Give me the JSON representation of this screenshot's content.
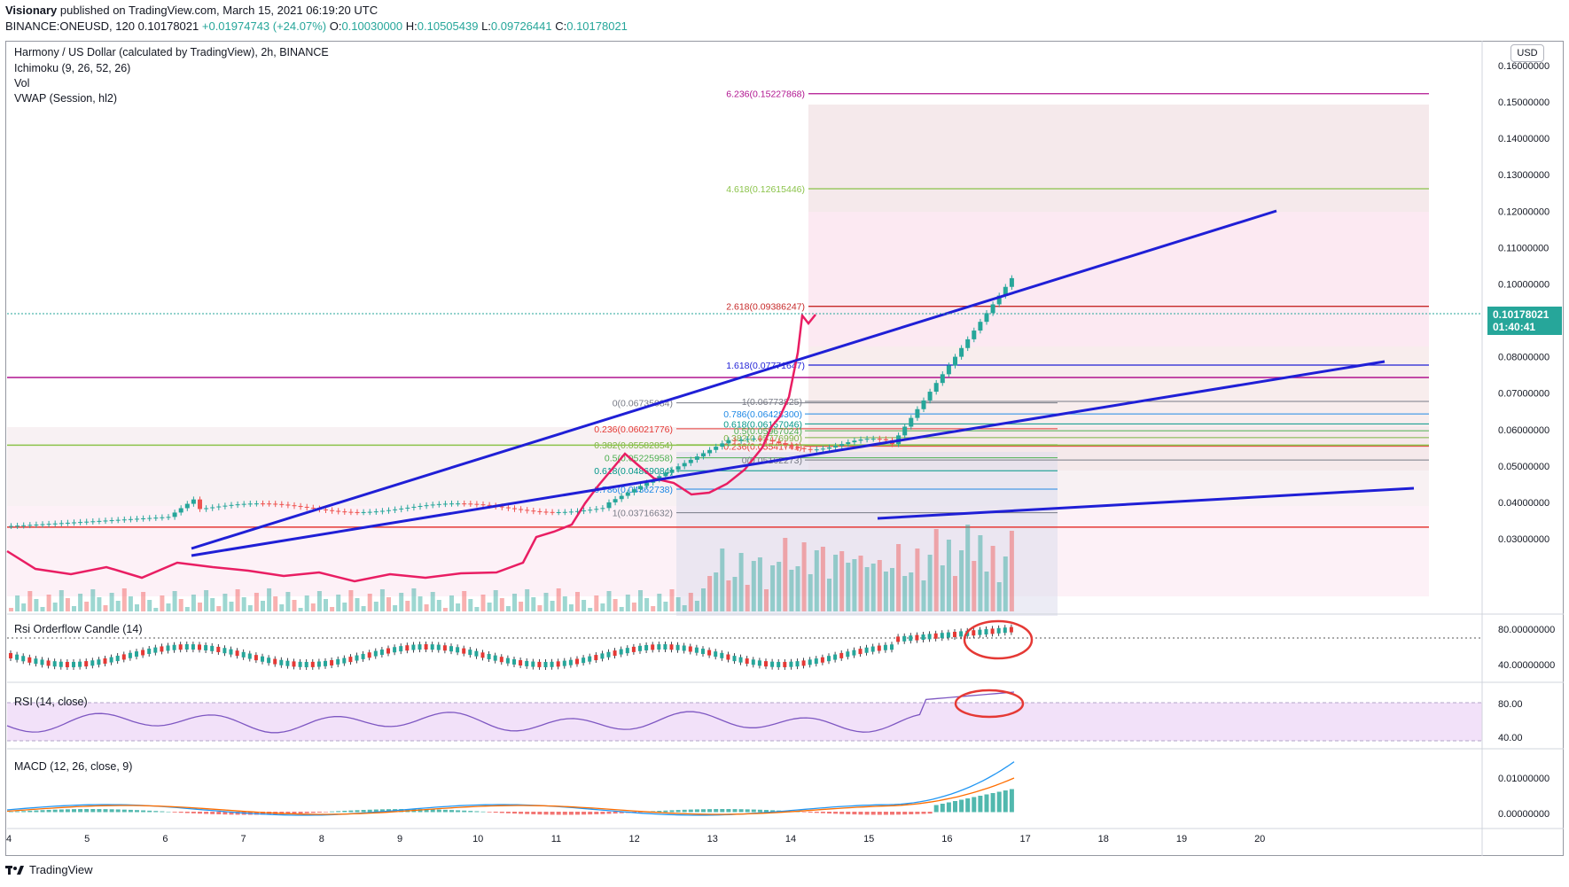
{
  "header": {
    "author": "Visionary",
    "published": "published on TradingView.com, March 15, 2021 06:19:20 UTC",
    "symbol": "BINANCE:ONEUSD, 120",
    "last": "0.10178021",
    "change": "+0.01974743 (+24.07%)",
    "o": "0.10030000",
    "h": "0.10505439",
    "l": "0.09726441",
    "c": "0.10178021"
  },
  "legend": {
    "title": "Harmony / US Dollar (calculated by TradingView), 2h, BINANCE",
    "ichimoku": "Ichimoku (9, 26, 52, 26)",
    "vol": "Vol",
    "vwap": "VWAP (Session, hl2)",
    "rsi_orderflow": "Rsi Orderflow Candle (14)",
    "rsi": "RSI (14, close)",
    "macd": "MACD (12, 26, close, 9)"
  },
  "currency_button": "USD",
  "price_tag": {
    "price": "0.10178021",
    "countdown": "01:40:41"
  },
  "footer_brand": "TradingView",
  "colors": {
    "up": "#26a69a",
    "down": "#ef5350",
    "trend": "#1f1fd6",
    "rsi_line": "#e91e63",
    "fib_magenta": "#b0138f",
    "fib_green": "#8bc34a"
  },
  "chart_data": {
    "type": "line",
    "x_ticks": [
      "4",
      "5",
      "6",
      "7",
      "8",
      "9",
      "10",
      "11",
      "12",
      "13",
      "14",
      "15",
      "16",
      "17",
      "18",
      "19",
      "20"
    ],
    "y_ticks": [
      "0.16000000",
      "0.15000000",
      "0.14000000",
      "0.13000000",
      "0.12000000",
      "0.11000000",
      "0.10000000",
      "0.09000000",
      "0.08000000",
      "0.07000000",
      "0.06000000",
      "0.05000000",
      "0.04000000",
      "0.03000000"
    ],
    "ylim": [
      0.03,
      0.16
    ],
    "fib_extension": [
      {
        "label": "6.236(0.15227868)",
        "value": 0.15227868
      },
      {
        "label": "4.618(0.12615446)",
        "value": 0.12615446
      },
      {
        "label": "2.618(0.09386247)",
        "value": 0.09386247
      },
      {
        "label": "1.618(0.07771647)",
        "value": 0.07771647
      }
    ],
    "fib_retracement_1": [
      {
        "label": "0(0.06735084)",
        "value": 0.06735084
      },
      {
        "label": "0.236(0.06021776)",
        "value": 0.06021776
      },
      {
        "label": "0.382(0.05582854)",
        "value": 0.05582854
      },
      {
        "label": "0.5(0.05225958)",
        "value": 0.05225958
      },
      {
        "label": "0.618(0.04869084)",
        "value": 0.04869084
      },
      {
        "label": "0.786(0.04362738)",
        "value": 0.04362738
      },
      {
        "label": "1(0.03716632)",
        "value": 0.03716632
      }
    ],
    "fib_retracement_2": [
      {
        "label": "1(0.06773825)",
        "value": 0.06773825
      },
      {
        "label": "0.786(0.06428300)",
        "value": 0.064283
      },
      {
        "label": "0.618(0.06157046)",
        "value": 0.06157046
      },
      {
        "label": "0.5(0.05967024)",
        "value": 0.05967024
      },
      {
        "label": "0.382(0.05776990)",
        "value": 0.0577699
      },
      {
        "label": "0.236(0.05541741)",
        "value": 0.05541741
      },
      {
        "label": "0(0.05162273)",
        "value": 0.05162273
      }
    ],
    "horizontal_levels": [
      0.0743,
      0.0557,
      0.0332
    ],
    "last_price": 0.10178021,
    "rsi_orderflow_ticks": [
      "80.00000000",
      "40.00000000"
    ],
    "rsi_ticks": [
      "80.00",
      "40.00"
    ],
    "macd_ticks": [
      "0.01000000",
      "0.00000000"
    ]
  }
}
